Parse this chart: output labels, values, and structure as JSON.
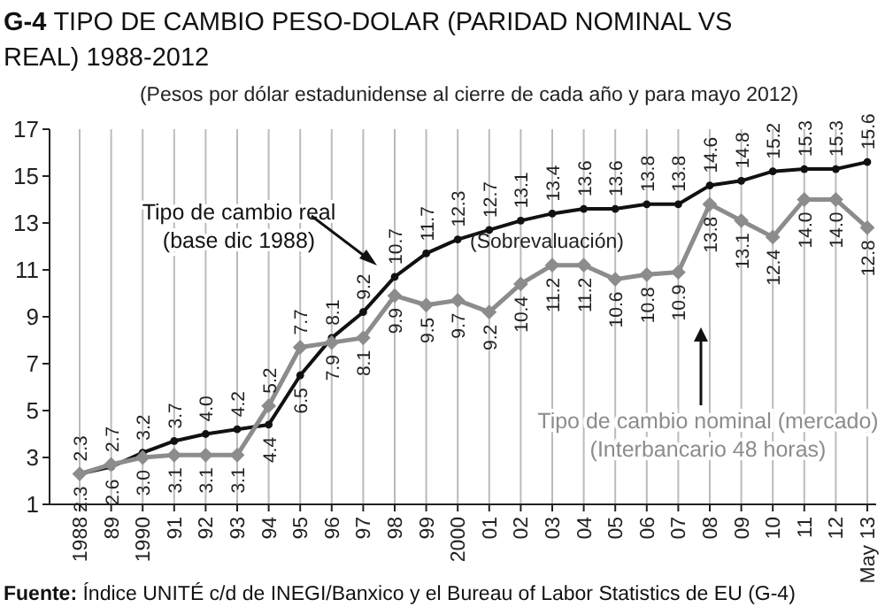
{
  "chart_data": {
    "type": "line",
    "title": "G-4 TIPO DE CAMBIO PESO-DOLAR (PARIDAD NOMINAL VS REAL) 1988-2012",
    "subtitle": "(Pesos por dólar estadunidense al cierre de cada año y para mayo 2012)",
    "categories": [
      "1988",
      "89",
      "1990",
      "91",
      "92",
      "93",
      "94",
      "95",
      "96",
      "97",
      "98",
      "99",
      "2000",
      "01",
      "02",
      "03",
      "04",
      "05",
      "06",
      "07",
      "08",
      "09",
      "10",
      "11",
      "12",
      "May 13"
    ],
    "series": [
      {
        "name": "Tipo de cambio real (base dic 1988)",
        "color": "#111111",
        "marker": "circle",
        "values": [
          2.3,
          2.6,
          3.2,
          3.7,
          4.0,
          4.2,
          4.4,
          6.5,
          8.1,
          9.2,
          10.7,
          11.7,
          12.3,
          12.7,
          13.1,
          13.4,
          13.6,
          13.6,
          13.8,
          13.8,
          14.6,
          14.8,
          15.2,
          15.3,
          15.3,
          15.6
        ],
        "value_labels": [
          "2.3",
          "2.6",
          "3.2",
          "3.7",
          "4.0",
          "4.2",
          "4.4",
          "6.5",
          "8.1",
          "9.2",
          "10.7",
          "11.7",
          "12.3",
          "12.7",
          "13.1",
          "13.4",
          "13.6",
          "13.6",
          "13.8",
          "13.8",
          "14.6",
          "14.8",
          "15.2",
          "15.3",
          "15.3",
          "15.6"
        ]
      },
      {
        "name": "Tipo de cambio nominal (mercado) (Interbancario 48 horas)",
        "color": "#8c8c8c",
        "marker": "diamond",
        "values": [
          2.3,
          2.7,
          3.0,
          3.1,
          3.1,
          3.1,
          5.2,
          7.7,
          7.9,
          8.1,
          9.9,
          9.5,
          9.7,
          9.2,
          10.4,
          11.2,
          11.2,
          10.6,
          10.8,
          10.9,
          13.8,
          13.1,
          12.4,
          14.0,
          14.0,
          12.8
        ],
        "value_labels": [
          "2.3",
          "2.7",
          "3.0",
          "3.1",
          "3.1",
          "3.1",
          "5.2",
          "7.7",
          "7.9",
          "8.1",
          "9.9",
          "9.5",
          "9.7",
          "9.2",
          "10.4",
          "11.2",
          "11.2",
          "10.6",
          "10.8",
          "10.9",
          "13.8",
          "13.1",
          "12.4",
          "14.0",
          "14.0",
          "12.8"
        ]
      }
    ],
    "ylim": [
      1,
      17
    ],
    "yticks": [
      1,
      3,
      5,
      7,
      9,
      11,
      13,
      15,
      17
    ],
    "grid": "x",
    "legend": false,
    "annotations": [
      "(Sobrevaluación)",
      "Fuente: Índice UNITÉ c/d de INEGI/Banxico y el Bureau of Labor Statistics de EU (G-4)"
    ]
  }
}
